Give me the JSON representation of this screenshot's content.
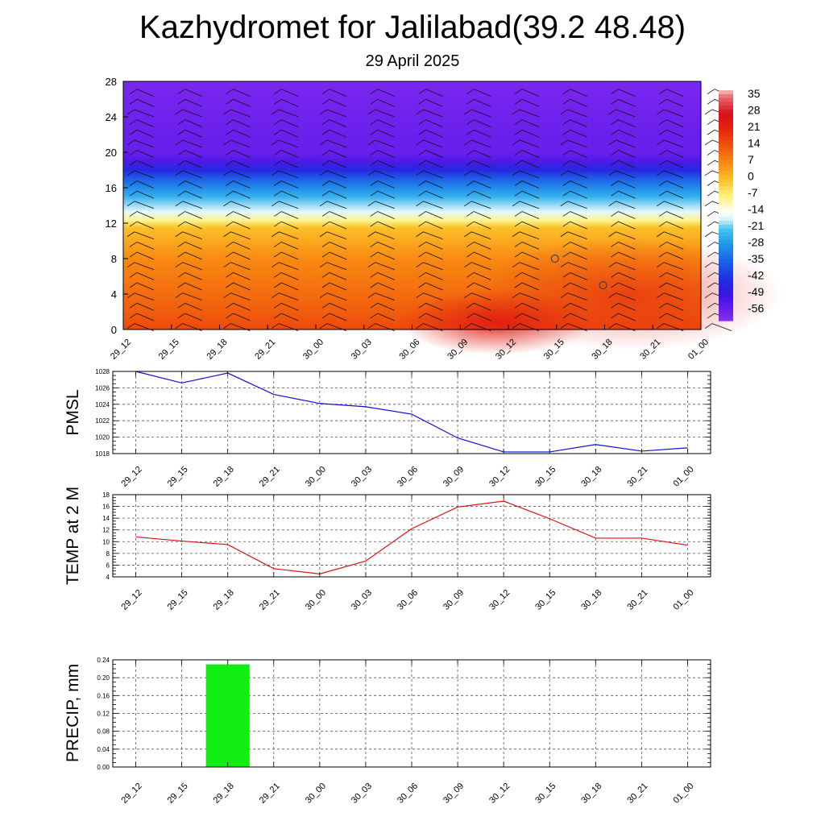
{
  "title": "Kazhydromet for Jalilabad(39.2 48.48)",
  "subtitle": "29 April 2025",
  "chart_data": [
    {
      "type": "heatmap",
      "name": "temperature-wind-cross-section",
      "x": [
        "29_12",
        "29_15",
        "29_18",
        "29_21",
        "30_00",
        "30_03",
        "30_06",
        "30_09",
        "30_12",
        "30_15",
        "30_18",
        "30_21",
        "01_00"
      ],
      "y_ticks": [
        0,
        4,
        8,
        12,
        16,
        20,
        24,
        28
      ],
      "ylim": [
        0,
        28
      ],
      "colorbar": {
        "ticks": [
          35,
          28,
          21,
          14,
          7,
          0,
          -7,
          -14,
          -21,
          -28,
          -35,
          -42,
          -49,
          -56
        ],
        "stops": [
          {
            "value": 38,
            "color": "#f7c3c3"
          },
          {
            "value": 35,
            "color": "#e8686a"
          },
          {
            "value": 28,
            "color": "#d6101a"
          },
          {
            "value": 21,
            "color": "#e8260c"
          },
          {
            "value": 14,
            "color": "#f0560c"
          },
          {
            "value": 7,
            "color": "#f98a12"
          },
          {
            "value": 0,
            "color": "#fcc128"
          },
          {
            "value": -7,
            "color": "#fff27a"
          },
          {
            "value": -14,
            "color": "#ffffff"
          },
          {
            "value": -17,
            "color": "#d6f4fb"
          },
          {
            "value": -21,
            "color": "#44c6ef"
          },
          {
            "value": -28,
            "color": "#1e94ea"
          },
          {
            "value": -35,
            "color": "#1a62e8"
          },
          {
            "value": -42,
            "color": "#1e30e0"
          },
          {
            "value": -49,
            "color": "#3a14e2"
          },
          {
            "value": -56,
            "color": "#6a20ec"
          },
          {
            "value": -60,
            "color": "#8a2ef2"
          }
        ]
      },
      "height_bands": [
        {
          "y": 0,
          "temp": 16
        },
        {
          "y": 2,
          "temp": 13
        },
        {
          "y": 4,
          "temp": 11
        },
        {
          "y": 6,
          "temp": 9
        },
        {
          "y": 8,
          "temp": 7
        },
        {
          "y": 10,
          "temp": 3
        },
        {
          "y": 11.5,
          "temp": 0
        },
        {
          "y": 12.3,
          "temp": -8
        },
        {
          "y": 13.3,
          "temp": -16
        },
        {
          "y": 15,
          "temp": -24
        },
        {
          "y": 16.5,
          "temp": -32
        },
        {
          "y": 18,
          "temp": -44
        },
        {
          "y": 19,
          "temp": -52
        },
        {
          "y": 20,
          "temp": -56
        },
        {
          "y": 22,
          "temp": -56
        },
        {
          "y": 28,
          "temp": -58
        }
      ]
    },
    {
      "type": "line",
      "name": "pmsl",
      "ylabel": "PMSL",
      "x": [
        "29_12",
        "29_15",
        "29_18",
        "29_21",
        "30_00",
        "30_03",
        "30_06",
        "30_09",
        "30_12",
        "30_15",
        "30_18",
        "30_21",
        "01_00"
      ],
      "series": [
        {
          "values": [
            1028,
            1026.6,
            1027.8,
            1025.2,
            1024.1,
            1023.7,
            1022.8,
            1019.9,
            1018.2,
            1018.2,
            1019.1,
            1018.3,
            1018.7
          ],
          "color": "#1010d8"
        }
      ],
      "y_ticks": [
        1018,
        1020,
        1022,
        1024,
        1026,
        1028
      ],
      "ylim": [
        1018,
        1028
      ],
      "grid": true
    },
    {
      "type": "line",
      "name": "temp-2m",
      "ylabel": "TEMP at 2 M",
      "x": [
        "29_12",
        "29_15",
        "29_18",
        "29_21",
        "30_00",
        "30_03",
        "30_06",
        "30_09",
        "30_12",
        "30_15",
        "30_18",
        "30_21",
        "01_00"
      ],
      "series": [
        {
          "values": [
            10.8,
            10.1,
            9.5,
            5.4,
            4.5,
            6.7,
            12.2,
            15.9,
            16.9,
            13.9,
            10.6,
            10.6,
            9.4
          ],
          "color": "#e01010"
        }
      ],
      "y_ticks": [
        4,
        6,
        8,
        10,
        12,
        14,
        16,
        18
      ],
      "ylim": [
        4,
        18
      ],
      "grid": true
    },
    {
      "type": "bar",
      "name": "precip",
      "ylabel": "PRECIP, mm",
      "x": [
        "29_12",
        "29_15",
        "29_18",
        "29_21",
        "30_00",
        "30_03",
        "30_06",
        "30_09",
        "30_12",
        "30_15",
        "30_18",
        "30_21",
        "01_00"
      ],
      "values": [
        0,
        0,
        0.23,
        0,
        0,
        0,
        0,
        0,
        0,
        0,
        0,
        0,
        0
      ],
      "y_ticks": [
        "0.00",
        "0.04",
        "0.08",
        "0.12",
        "0.16",
        "0.20",
        "0.24"
      ],
      "ylim": [
        0,
        0.24
      ],
      "bar_color": "#12ee12",
      "grid": true
    }
  ]
}
